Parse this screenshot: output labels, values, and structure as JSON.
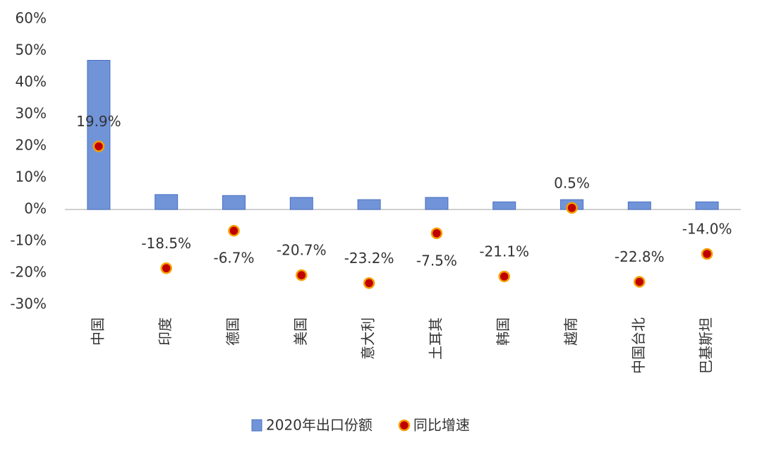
{
  "chart_data": {
    "type": "combo",
    "categories": [
      "中国",
      "印度",
      "德国",
      "美国",
      "意大利",
      "土耳其",
      "韩国",
      "越南",
      "中国台北",
      "巴基斯坦"
    ],
    "series": [
      {
        "name": "2020年出口份额",
        "type": "bar",
        "color": "#7194d9",
        "values": [
          47,
          4.7,
          4.4,
          3.8,
          3.1,
          3.8,
          2.4,
          3.1,
          2.4,
          2.4
        ]
      },
      {
        "name": "同比增速",
        "type": "scatter",
        "color": "#c00000",
        "values": [
          19.9,
          -18.5,
          -6.7,
          -20.7,
          -23.2,
          -7.5,
          -21.1,
          0.5,
          -22.8,
          -14.0
        ],
        "value_labels": [
          "19.9%",
          "-18.5%",
          "-6.7%",
          "-20.7%",
          "-23.2%",
          "-7.5%",
          "-21.1%",
          "0.5%",
          "-22.8%",
          "-14.0%"
        ]
      }
    ],
    "ylim": [
      -30,
      60
    ],
    "yticks": [
      {
        "value": -30,
        "label": "-30%"
      },
      {
        "value": -20,
        "label": "-20%"
      },
      {
        "value": -10,
        "label": "-10%"
      },
      {
        "value": 0,
        "label": "0%"
      },
      {
        "value": 10,
        "label": "10%"
      },
      {
        "value": 20,
        "label": "20%"
      },
      {
        "value": 30,
        "label": "30%"
      },
      {
        "value": 40,
        "label": "40%"
      },
      {
        "value": 50,
        "label": "50%"
      },
      {
        "value": 60,
        "label": "60%"
      }
    ],
    "grid": false,
    "legend": "bottom"
  }
}
